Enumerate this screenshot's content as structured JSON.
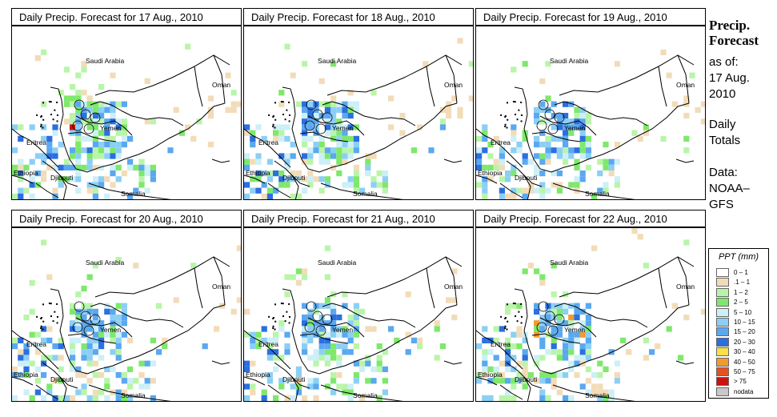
{
  "panels": [
    {
      "title": "Daily Precip. Forecast for  17 Aug., 2010"
    },
    {
      "title": "Daily Precip. Forecast for  18 Aug., 2010"
    },
    {
      "title": "Daily Precip. Forecast for  19 Aug., 2010"
    },
    {
      "title": "Daily Precip. Forecast for  20 Aug., 2010"
    },
    {
      "title": "Daily Precip. Forecast for  21 Aug., 2010"
    },
    {
      "title": "Daily Precip. Forecast for  22 Aug., 2010"
    }
  ],
  "country_labels": {
    "saudi_arabia": "Saudi Arabia",
    "oman": "Oman",
    "yemen": "Yemen",
    "eritrea": "Eritrea",
    "ethiopia": "Ethiopia",
    "djibouti": "Djibouti",
    "somalia": "Somalia"
  },
  "side": {
    "title_line1": "Precip.",
    "title_line2": "Forecast",
    "asof_line1": "as of:",
    "asof_line2": "17 Aug.",
    "asof_line3": "2010",
    "totals_line1": "Daily",
    "totals_line2": "Totals",
    "data_line1": "Data:",
    "data_line2": "NOAA–",
    "data_line3": "GFS"
  },
  "legend": {
    "title": "PPT (mm)",
    "items": [
      {
        "label": "0 – 1",
        "color": "#ffffff"
      },
      {
        "label": ".1 – 1",
        "color": "#f2dcb8"
      },
      {
        "label": "1 – 2",
        "color": "#b9f5a9"
      },
      {
        "label": "2 – 5",
        "color": "#7ee86b"
      },
      {
        "label": "5 – 10",
        "color": "#cdeff7"
      },
      {
        "label": "10 – 15",
        "color": "#8ccff5"
      },
      {
        "label": "15 – 20",
        "color": "#5aa8f0"
      },
      {
        "label": "20 – 30",
        "color": "#2b6fe0"
      },
      {
        "label": "30 – 40",
        "color": "#f7e04a"
      },
      {
        "label": "40 – 50",
        "color": "#f29a2e"
      },
      {
        "label": "50 – 75",
        "color": "#e8501e"
      },
      {
        "label": "> 75",
        "color": "#d01010"
      },
      {
        "label": "nodata",
        "color": "#c8c8c8"
      }
    ]
  }
}
